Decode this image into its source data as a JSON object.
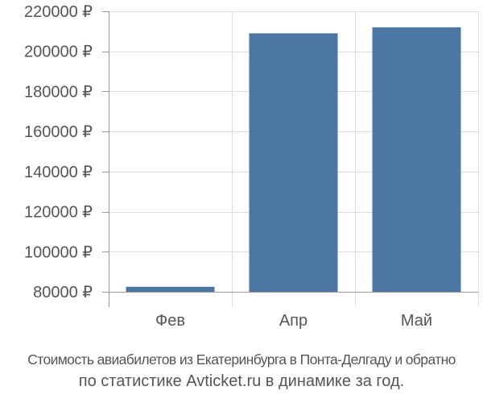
{
  "chart_data": {
    "type": "bar",
    "categories": [
      "Фев",
      "Апр",
      "Май"
    ],
    "values": [
      82500,
      209000,
      212000
    ],
    "ylim": [
      75000,
      220000
    ],
    "yticks": [
      80000,
      100000,
      120000,
      140000,
      160000,
      180000,
      200000,
      220000
    ],
    "ytick_labels": [
      "80000 ₽",
      "100000 ₽",
      "120000 ₽",
      "140000 ₽",
      "160000 ₽",
      "180000 ₽",
      "200000 ₽",
      "220000 ₽"
    ],
    "grid": true,
    "bar_color": "#4c77a5",
    "grid_color": "#dddddd",
    "axis_color": "#999999"
  },
  "caption": {
    "line1": "Стоимость авиабилетов из Екатеринбурга в Понта-Делгаду и обратно",
    "line2": "по статистике Avticket.ru в динамике за год."
  }
}
